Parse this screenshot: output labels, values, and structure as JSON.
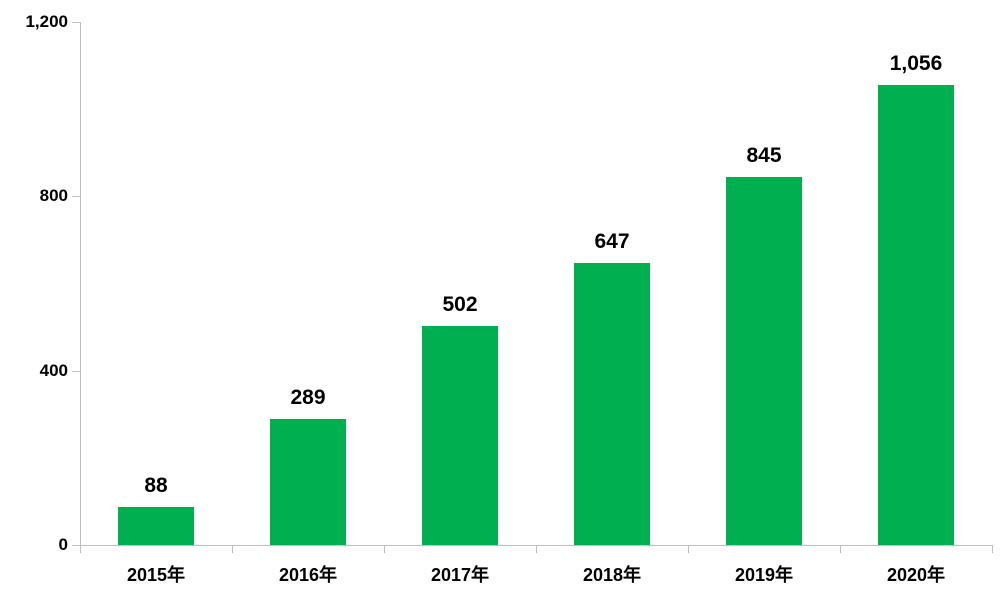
{
  "chart_data": {
    "type": "bar",
    "title": "",
    "categories": [
      "2015年",
      "2016年",
      "2017年",
      "2018年",
      "2019年",
      "2020年"
    ],
    "values": [
      88,
      289,
      502,
      647,
      845,
      1056
    ],
    "value_labels": [
      "88",
      "289",
      "502",
      "647",
      "845",
      "1,056"
    ],
    "series": [
      {
        "name": "",
        "values": [
          88,
          289,
          502,
          647,
          845,
          1056
        ]
      }
    ],
    "xlabel": "",
    "ylabel": "",
    "ylim": [
      0,
      1200
    ],
    "y_ticks": [
      {
        "value": 0,
        "label": "0"
      },
      {
        "value": 400,
        "label": "400"
      },
      {
        "value": 800,
        "label": "800"
      },
      {
        "value": 1200,
        "label": "1,200"
      }
    ],
    "grid": "off",
    "legend": "none",
    "bar_color": "#00B050",
    "axis_color": "#BFBFBF",
    "text_color": "#000000",
    "background_color": "#FFFFFF"
  }
}
